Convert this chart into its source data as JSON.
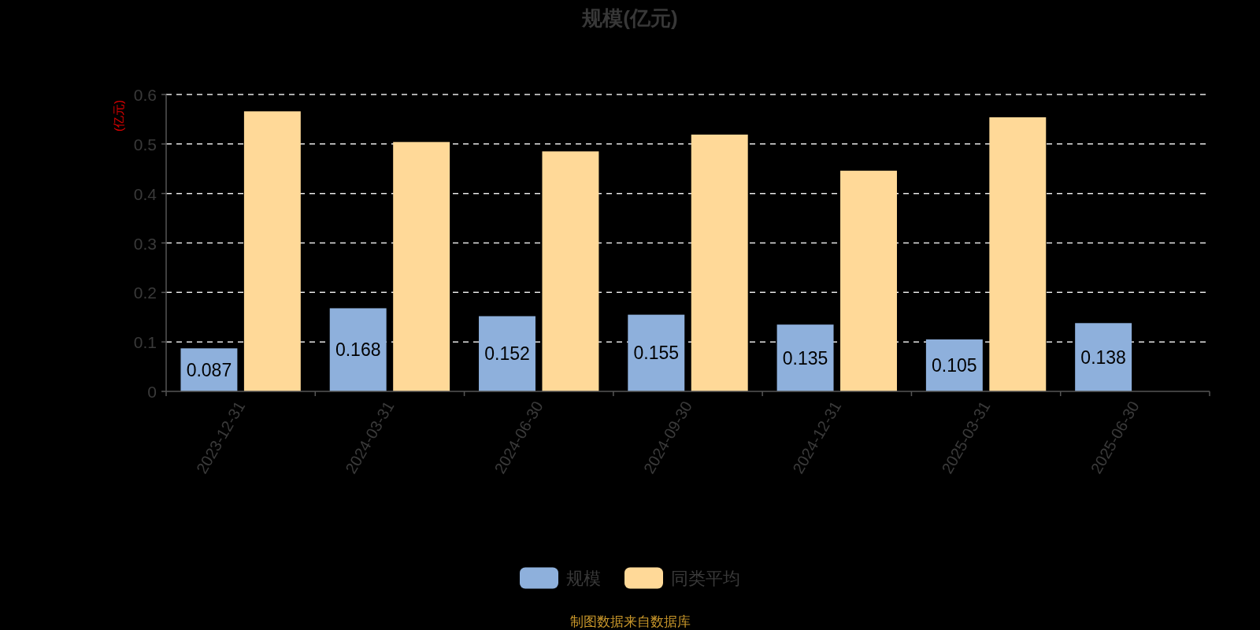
{
  "chart_data": {
    "type": "bar",
    "title": "规模(亿元)",
    "ylabel": "(亿元)",
    "categories": [
      "2023-12-31",
      "2024-03-31",
      "2024-06-30",
      "2024-09-30",
      "2024-12-31",
      "2025-03-31",
      "2025-06-30"
    ],
    "series": [
      {
        "name": "规模",
        "color": "#8eb0dc",
        "values": [
          0.087,
          0.168,
          0.152,
          0.155,
          0.135,
          0.105,
          0.138
        ],
        "value_labels": [
          "0.087",
          "0.168",
          "0.152",
          "0.155",
          "0.135",
          "0.105",
          "0.138"
        ]
      },
      {
        "name": "同类平均",
        "color": "#ffd998",
        "values": [
          0.566,
          0.504,
          0.485,
          0.519,
          0.446,
          0.554,
          null
        ]
      }
    ],
    "ylim": [
      0,
      0.6
    ],
    "yticks": [
      0,
      0.1,
      0.2,
      0.3,
      0.4,
      0.5,
      0.6
    ],
    "grid": "y",
    "legend": "bottom",
    "annotations": [
      "制图数据来自数据库"
    ]
  }
}
